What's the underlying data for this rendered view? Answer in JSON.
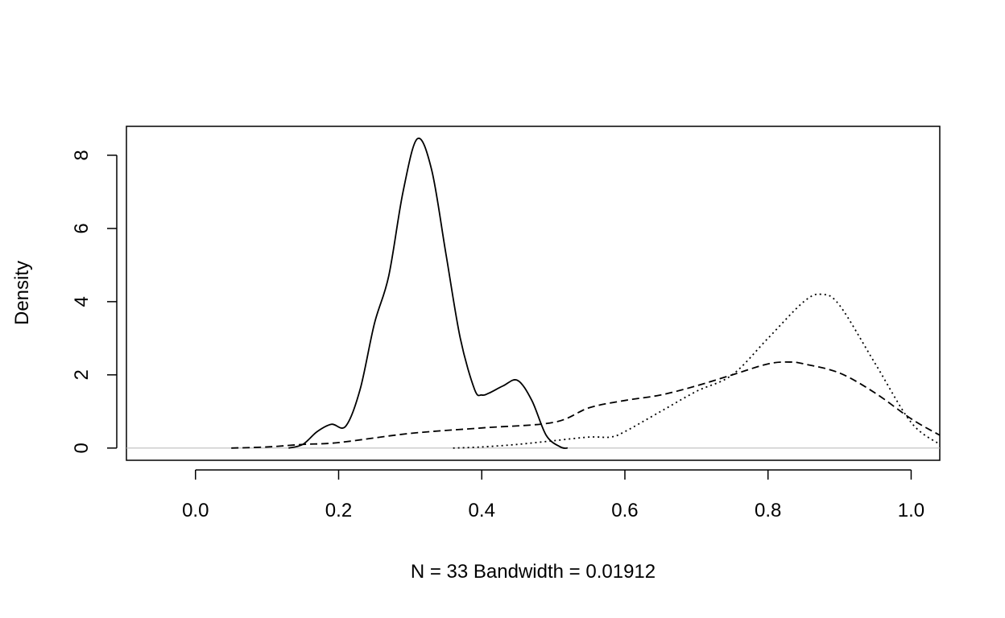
{
  "chart_data": {
    "type": "line",
    "title": "",
    "xlabel": "N = 33   Bandwidth = 0.01912",
    "ylabel": "Density",
    "xlim": [
      -0.0965,
      1.04
    ],
    "ylim": [
      -0.334,
      8.79
    ],
    "x_ticks": [
      "0.0",
      "0.2",
      "0.4",
      "0.6",
      "0.8",
      "1.0"
    ],
    "y_ticks": [
      "0",
      "2",
      "4",
      "6",
      "8"
    ],
    "grid": false,
    "legend": "none",
    "zero_line_color": "#bebebe",
    "series": [
      {
        "style": "solid",
        "x": [
          0.13,
          0.15,
          0.17,
          0.19,
          0.21,
          0.23,
          0.25,
          0.27,
          0.29,
          0.31,
          0.33,
          0.35,
          0.37,
          0.39,
          0.4,
          0.41,
          0.43,
          0.45,
          0.47,
          0.49,
          0.51,
          0.52
        ],
        "y": [
          0.0,
          0.1,
          0.45,
          0.65,
          0.6,
          1.6,
          3.4,
          4.7,
          7.0,
          8.45,
          7.6,
          5.3,
          3.0,
          1.6,
          1.45,
          1.5,
          1.7,
          1.85,
          1.3,
          0.35,
          0.03,
          0.0
        ]
      },
      {
        "style": "dashed",
        "x": [
          0.05,
          0.1,
          0.15,
          0.2,
          0.3,
          0.4,
          0.5,
          0.55,
          0.6,
          0.65,
          0.7,
          0.75,
          0.8,
          0.83,
          0.85,
          0.9,
          0.95,
          1.0,
          1.04
        ],
        "y": [
          0.0,
          0.03,
          0.1,
          0.15,
          0.4,
          0.55,
          0.7,
          1.1,
          1.3,
          1.45,
          1.7,
          2.0,
          2.3,
          2.35,
          2.3,
          2.05,
          1.5,
          0.8,
          0.35
        ]
      },
      {
        "style": "dotted",
        "x": [
          0.36,
          0.4,
          0.45,
          0.5,
          0.55,
          0.58,
          0.6,
          0.65,
          0.7,
          0.75,
          0.8,
          0.85,
          0.875,
          0.9,
          0.95,
          1.0,
          1.04
        ],
        "y": [
          0.0,
          0.03,
          0.1,
          0.2,
          0.3,
          0.3,
          0.45,
          1.0,
          1.55,
          2.0,
          3.0,
          4.0,
          4.2,
          3.9,
          2.3,
          0.7,
          0.1
        ]
      }
    ]
  }
}
